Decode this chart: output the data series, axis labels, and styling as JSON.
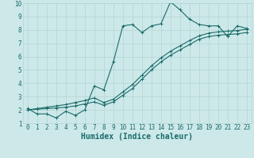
{
  "xlabel": "Humidex (Indice chaleur)",
  "xlim": [
    -0.5,
    23.5
  ],
  "ylim": [
    1,
    10
  ],
  "xticks": [
    0,
    1,
    2,
    3,
    4,
    5,
    6,
    7,
    8,
    9,
    10,
    11,
    12,
    13,
    14,
    15,
    16,
    17,
    18,
    19,
    20,
    21,
    22,
    23
  ],
  "yticks": [
    1,
    2,
    3,
    4,
    5,
    6,
    7,
    8,
    9,
    10
  ],
  "bg_color": "#cce8e8",
  "grid_color": "#b5d5d5",
  "line_color": "#1a6b6b",
  "line1_x": [
    0,
    1,
    2,
    3,
    4,
    5,
    6,
    7,
    8,
    9,
    10,
    11,
    12,
    13,
    14,
    15,
    16,
    17,
    18,
    19,
    20,
    21,
    22,
    23
  ],
  "line1_y": [
    2.1,
    1.7,
    1.7,
    1.4,
    1.9,
    1.6,
    2.0,
    3.8,
    3.5,
    5.6,
    8.3,
    8.4,
    7.8,
    8.3,
    8.45,
    10.1,
    9.5,
    8.8,
    8.4,
    8.3,
    8.3,
    7.5,
    8.3,
    8.1
  ],
  "line2_x": [
    0,
    1,
    2,
    3,
    4,
    5,
    6,
    7,
    8,
    9,
    10,
    11,
    12,
    13,
    14,
    15,
    16,
    17,
    18,
    19,
    20,
    21,
    22,
    23
  ],
  "line2_y": [
    2.0,
    2.05,
    2.1,
    2.15,
    2.2,
    2.3,
    2.45,
    2.6,
    2.35,
    2.6,
    3.1,
    3.6,
    4.3,
    5.0,
    5.6,
    6.1,
    6.5,
    6.9,
    7.3,
    7.5,
    7.6,
    7.65,
    7.7,
    7.8
  ],
  "line3_x": [
    0,
    1,
    2,
    3,
    4,
    5,
    6,
    7,
    8,
    9,
    10,
    11,
    12,
    13,
    14,
    15,
    16,
    17,
    18,
    19,
    20,
    21,
    22,
    23
  ],
  "line3_y": [
    2.0,
    2.1,
    2.2,
    2.3,
    2.4,
    2.55,
    2.7,
    2.9,
    2.55,
    2.8,
    3.35,
    3.9,
    4.6,
    5.3,
    5.9,
    6.4,
    6.8,
    7.2,
    7.55,
    7.75,
    7.85,
    7.9,
    7.95,
    8.05
  ],
  "marker_size": 2.5,
  "line_width": 0.8,
  "tick_fontsize": 5.5,
  "xlabel_fontsize": 7.0
}
